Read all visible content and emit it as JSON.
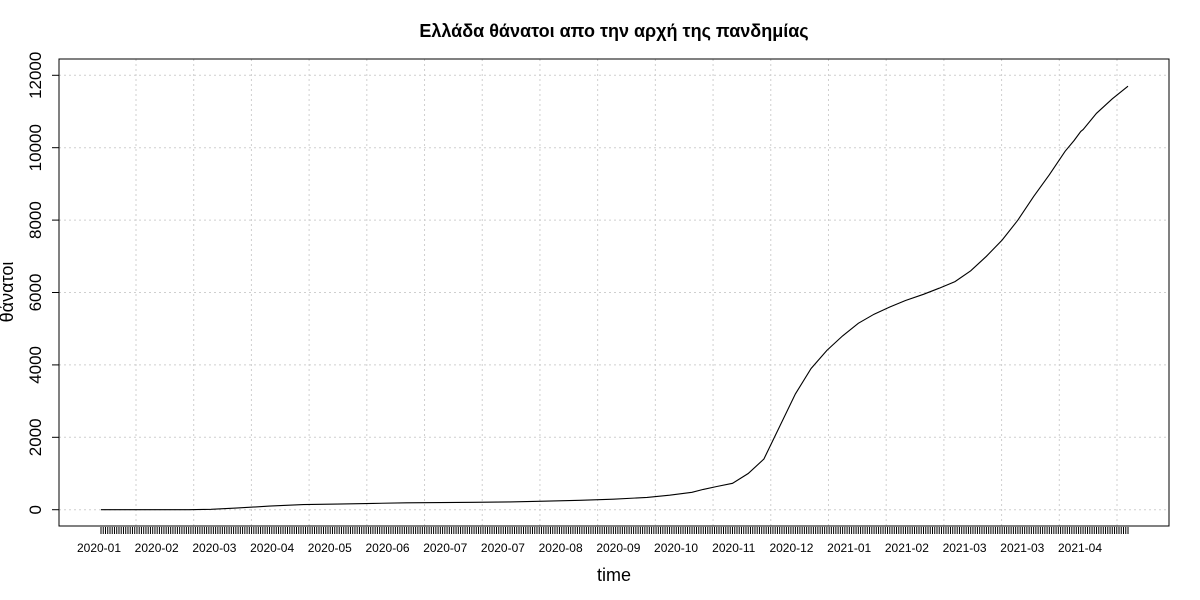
{
  "chart_data": {
    "type": "line",
    "title": "Ελλάδα θάνατοι απο την αρχή της πανδημίας",
    "xlabel": "time",
    "ylabel": "θάνατοι",
    "ylim": [
      -450,
      12450
    ],
    "yticks": [
      0,
      2000,
      4000,
      6000,
      8000,
      10000,
      12000
    ],
    "grid": true,
    "x_tick_labels": [
      "2020-01",
      "2020-02",
      "2020-03",
      "2020-04",
      "2020-05",
      "2020-06",
      "2020-07",
      "2020-07",
      "2020-08",
      "2020-09",
      "2020-10",
      "2020-11",
      "2020-12",
      "2021-01",
      "2021-02",
      "2021-03",
      "2021-03",
      "2021-04"
    ],
    "series": [
      {
        "x": [
          "2020-01-31",
          "2020-02-15",
          "2020-02-29",
          "2020-03-10",
          "2020-03-20",
          "2020-03-31",
          "2020-04-15",
          "2020-04-30",
          "2020-05-15",
          "2020-05-31",
          "2020-06-15",
          "2020-06-30",
          "2020-07-15",
          "2020-07-31",
          "2020-08-15",
          "2020-08-31",
          "2020-09-15",
          "2020-09-30",
          "2020-10-10",
          "2020-10-20",
          "2020-10-25",
          "2020-10-31",
          "2020-11-07",
          "2020-11-14",
          "2020-11-21",
          "2020-11-28",
          "2020-12-05",
          "2020-12-12",
          "2020-12-19",
          "2020-12-26",
          "2021-01-02",
          "2021-01-09",
          "2021-01-16",
          "2021-01-23",
          "2021-01-31",
          "2021-02-07",
          "2021-02-14",
          "2021-02-21",
          "2021-02-28",
          "2021-03-07",
          "2021-03-14",
          "2021-03-21",
          "2021-03-28",
          "2021-04-04",
          "2021-04-08",
          "2021-04-11",
          "2021-04-12",
          "2021-04-18",
          "2021-04-25",
          "2021-05-02"
        ],
        "values": [
          0,
          0,
          0,
          0,
          10,
          45,
          100,
          140,
          155,
          175,
          190,
          195,
          205,
          215,
          235,
          260,
          290,
          340,
          400,
          480,
          560,
          640,
          730,
          1000,
          1400,
          2300,
          3200,
          3900,
          4400,
          4800,
          5150,
          5400,
          5600,
          5780,
          5950,
          6120,
          6300,
          6600,
          7000,
          7450,
          8000,
          8650,
          9250,
          9900,
          10200,
          10450,
          10500,
          10950,
          11350,
          11700
        ]
      }
    ]
  }
}
